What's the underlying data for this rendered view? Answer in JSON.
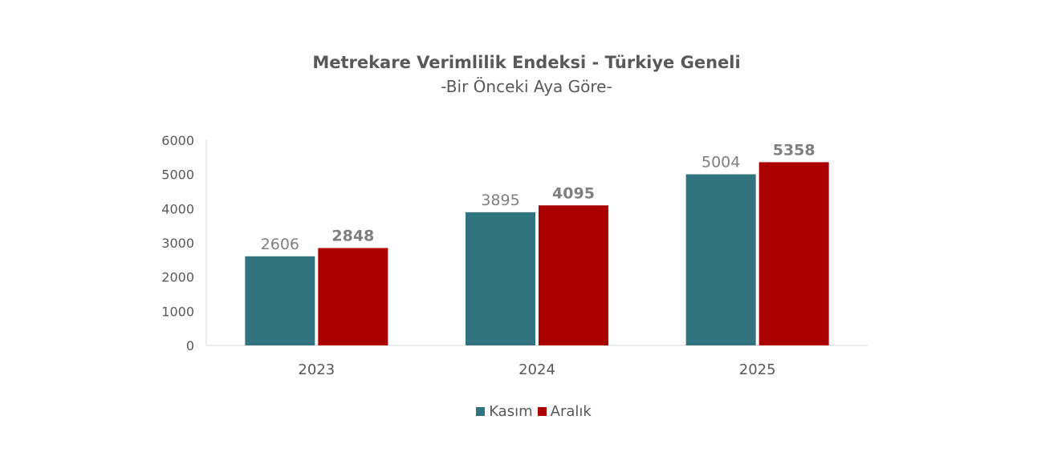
{
  "chart_data": {
    "type": "bar",
    "title": "Metrekare Verimlilik Endeksi - Türkiye Geneli",
    "subtitle": "-Bir Önceki Aya Göre-",
    "categories": [
      "2023",
      "2024",
      "2025"
    ],
    "series": [
      {
        "name": "Kasım",
        "values": [
          2606,
          3895,
          5004
        ],
        "color": "#31737F"
      },
      {
        "name": "Aralık",
        "values": [
          2848,
          4095,
          5358
        ],
        "color": "#AB0000"
      }
    ],
    "ylim": [
      0,
      6000
    ],
    "yticks": [
      "0",
      "1000",
      "2000",
      "3000",
      "4000",
      "5000",
      "6000"
    ],
    "grid": false,
    "legend": "bottom"
  }
}
